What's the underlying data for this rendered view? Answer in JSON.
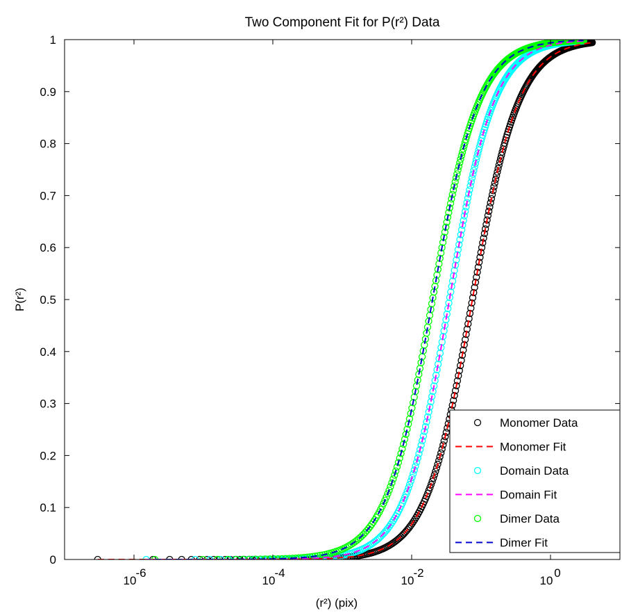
{
  "chart_data": {
    "type": "line",
    "title": "Two Component Fit for P(r²) Data",
    "xlabel": "(r²) (pix)",
    "ylabel": "P(r²)",
    "xscale": "log",
    "xlim": [
      1e-07,
      10
    ],
    "ylim": [
      0,
      1
    ],
    "x_ticks": [
      {
        "value": 1e-06,
        "label_base": "10",
        "label_exp": "-6"
      },
      {
        "value": 0.0001,
        "label_base": "10",
        "label_exp": "-4"
      },
      {
        "value": 0.01,
        "label_base": "10",
        "label_exp": "-2"
      },
      {
        "value": 1,
        "label_base": "10",
        "label_exp": "0"
      }
    ],
    "y_ticks": [
      "0",
      "0.1",
      "0.2",
      "0.3",
      "0.4",
      "0.5",
      "0.6",
      "0.7",
      "0.8",
      "0.9",
      "1"
    ],
    "grid": false,
    "legend_position": "bottom-right",
    "series": [
      {
        "name": "Monomer Data",
        "kind": "markers",
        "color": "#000000",
        "median": 0.075,
        "slope": 1.3,
        "xmin": 3e-07,
        "xmax": 4.0
      },
      {
        "name": "Monomer Fit",
        "kind": "dashed",
        "color": "#ff0000",
        "median": 0.075,
        "slope": 1.3,
        "xmin": 3e-07,
        "xmax": 4.0
      },
      {
        "name": "Domain Data",
        "kind": "markers",
        "color": "#00ffff",
        "median": 0.035,
        "slope": 1.35,
        "xmin": 1.5e-06,
        "xmax": 3.0
      },
      {
        "name": "Domain Fit",
        "kind": "dashed",
        "color": "#ff00ff",
        "median": 0.035,
        "slope": 1.35,
        "xmin": 1.5e-06,
        "xmax": 3.0
      },
      {
        "name": "Dimer Data",
        "kind": "markers",
        "color": "#00ff00",
        "median": 0.02,
        "slope": 1.3,
        "xmin": 2e-06,
        "xmax": 3.0
      },
      {
        "name": "Dimer Fit",
        "kind": "dashed",
        "color": "#0000cc",
        "median": 0.02,
        "slope": 1.3,
        "xmin": 2e-06,
        "xmax": 3.0
      }
    ]
  }
}
